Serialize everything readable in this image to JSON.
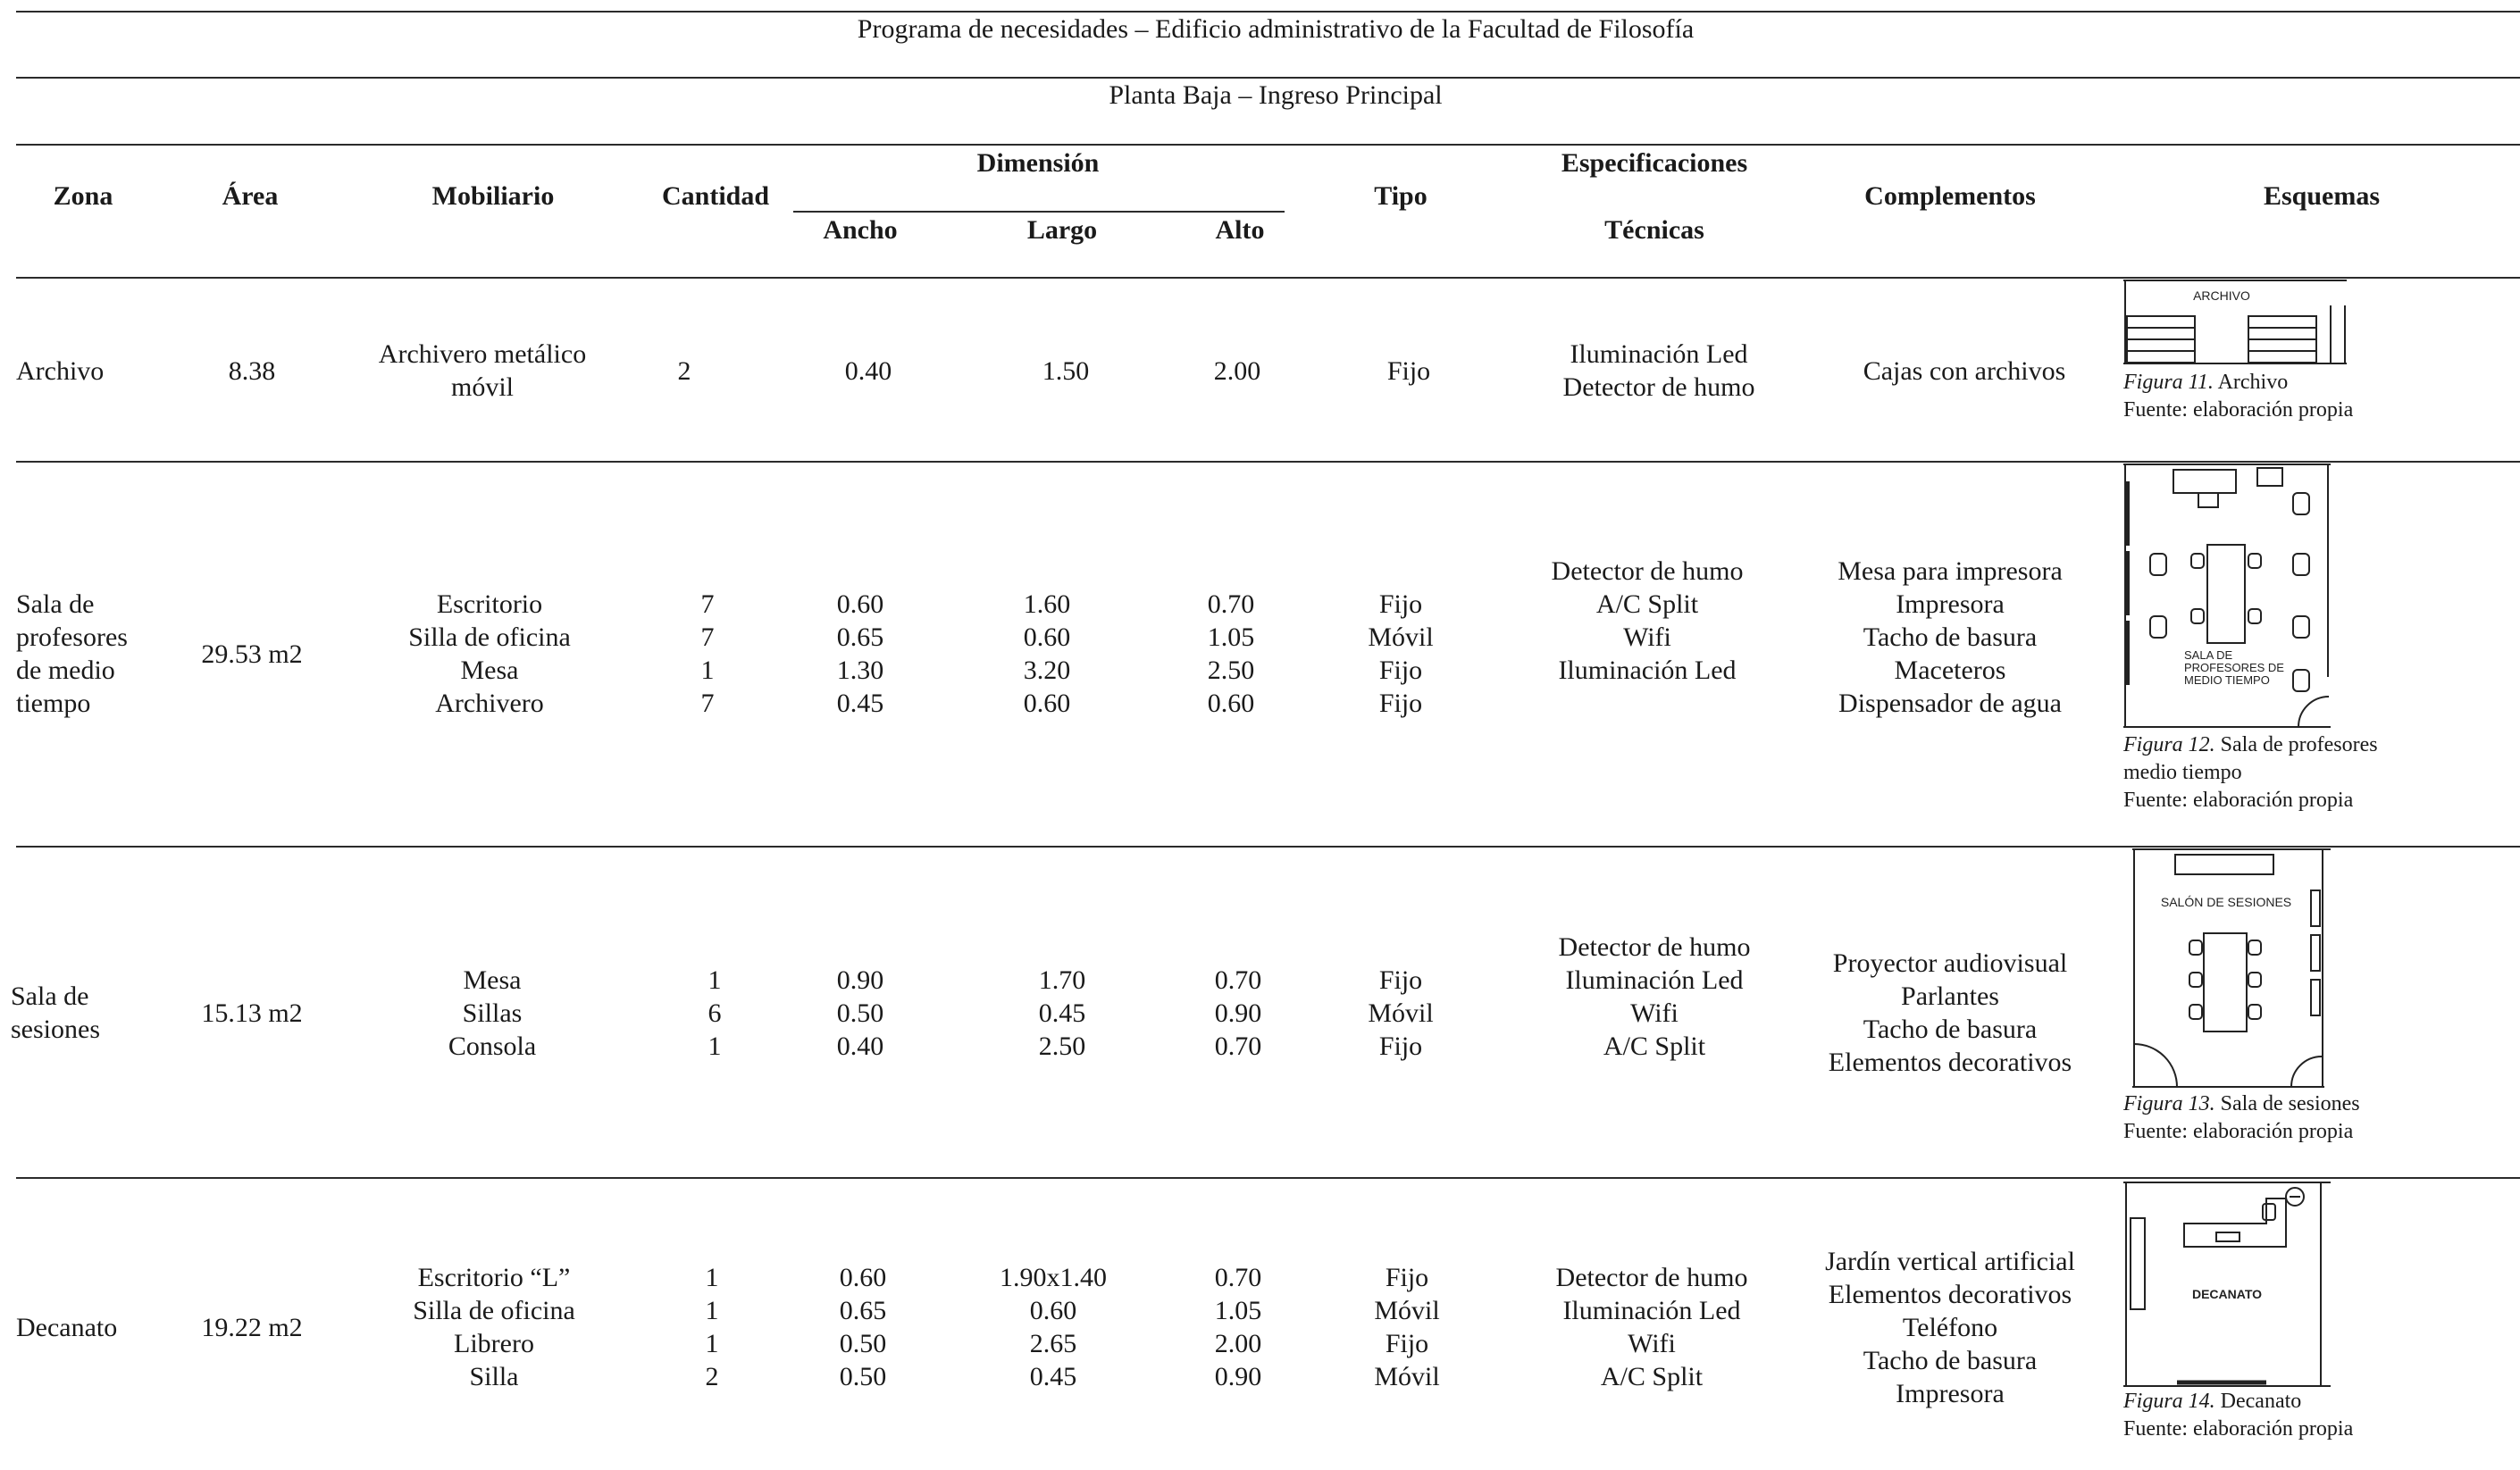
{
  "title": "Programa de necesidades – Edificio administrativo de la Facultad de Filosofía",
  "subtitle": "Planta Baja – Ingreso Principal",
  "headers": {
    "zona": "Zona",
    "area": "Área",
    "mobiliario": "Mobiliario",
    "cantidad": "Cantidad",
    "dimension": "Dimensión",
    "ancho": "Ancho",
    "largo": "Largo",
    "alto": "Alto",
    "tipo": "Tipo",
    "especificaciones": "Especificaciones",
    "tecnicas": "Técnicas",
    "complementos": "Complementos",
    "esquemas": "Esquemas"
  },
  "rows": [
    {
      "zona": [
        "Archivo"
      ],
      "area": "8.38",
      "mobiliario": [
        "Archivero metálico",
        "móvil"
      ],
      "cantidad": [
        "2"
      ],
      "ancho": [
        "0.40"
      ],
      "largo": [
        "1.50"
      ],
      "alto": [
        "2.00"
      ],
      "tipo": [
        "Fijo"
      ],
      "especificaciones": [
        "Iluminación Led",
        "Detector de humo"
      ],
      "complementos": [
        "Cajas con archivos"
      ],
      "scheme_label": "ARCHIVO",
      "caption_fig": "Figura 11.",
      "caption_text": "Archivo",
      "caption_source": "Fuente: elaboración propia"
    },
    {
      "zona": [
        "Sala de",
        "profesores",
        "de medio",
        "tiempo"
      ],
      "area": "29.53 m2",
      "mobiliario": [
        "Escritorio",
        "Silla de oficina",
        "Mesa",
        "Archivero"
      ],
      "cantidad": [
        "7",
        "7",
        "1",
        "7"
      ],
      "ancho": [
        "0.60",
        "0.65",
        "1.30",
        "0.45"
      ],
      "largo": [
        "1.60",
        "0.60",
        "3.20",
        "0.60"
      ],
      "alto": [
        "0.70",
        "1.05",
        "2.50",
        "0.60"
      ],
      "tipo": [
        "Fijo",
        "Móvil",
        "Fijo",
        "Fijo"
      ],
      "especificaciones": [
        "Detector de humo",
        "A/C Split",
        "Wifi",
        "Iluminación Led"
      ],
      "complementos": [
        "Mesa para impresora",
        "Impresora",
        "Tacho de basura",
        "Maceteros",
        "Dispensador de agua"
      ],
      "scheme_label": [
        "SALA DE",
        "PROFESORES DE",
        "MEDIO TIEMPO"
      ],
      "caption_fig": "Figura 12.",
      "caption_text": "Sala de profesores",
      "caption_text2": "medio tiempo",
      "caption_source": "Fuente: elaboración propia"
    },
    {
      "zona": [
        "Sala de",
        "sesiones"
      ],
      "area": "15.13 m2",
      "mobiliario": [
        "Mesa",
        "Sillas",
        "Consola"
      ],
      "cantidad": [
        "1",
        "6",
        "1"
      ],
      "ancho": [
        "0.90",
        "0.50",
        "0.40"
      ],
      "largo": [
        "1.70",
        "0.45",
        "2.50"
      ],
      "alto": [
        "0.70",
        "0.90",
        "0.70"
      ],
      "tipo": [
        "Fijo",
        "Móvil",
        "Fijo"
      ],
      "especificaciones": [
        "Detector de humo",
        "Iluminación Led",
        "Wifi",
        "A/C Split"
      ],
      "complementos": [
        "Proyector audiovisual",
        "Parlantes",
        "Tacho de basura",
        "Elementos decorativos"
      ],
      "scheme_label": "SALÓN DE SESIONES",
      "caption_fig": "Figura 13.",
      "caption_text": "Sala de sesiones",
      "caption_source": "Fuente: elaboración propia"
    },
    {
      "zona": [
        "Decanato"
      ],
      "area": "19.22 m2",
      "mobiliario": [
        "Escritorio “L”",
        "Silla de oficina",
        "Librero",
        "Silla"
      ],
      "cantidad": [
        "1",
        "1",
        "1",
        "2"
      ],
      "ancho": [
        "0.60",
        "0.65",
        "0.50",
        "0.50"
      ],
      "largo": [
        "1.90x1.40",
        "0.60",
        "2.65",
        "0.45"
      ],
      "alto": [
        "0.70",
        "1.05",
        "2.00",
        "0.90"
      ],
      "tipo": [
        "Fijo",
        "Móvil",
        "Fijo",
        "Móvil"
      ],
      "especificaciones": [
        "Detector de humo",
        "Iluminación Led",
        "Wifi",
        "A/C Split"
      ],
      "complementos": [
        "Jardín vertical artificial",
        "Elementos decorativos",
        "Teléfono",
        "Tacho de basura",
        "Impresora"
      ],
      "scheme_label": "DECANATO",
      "caption_fig": "Figura 14.",
      "caption_text": "Decanato",
      "caption_source": "Fuente: elaboración propia"
    }
  ]
}
